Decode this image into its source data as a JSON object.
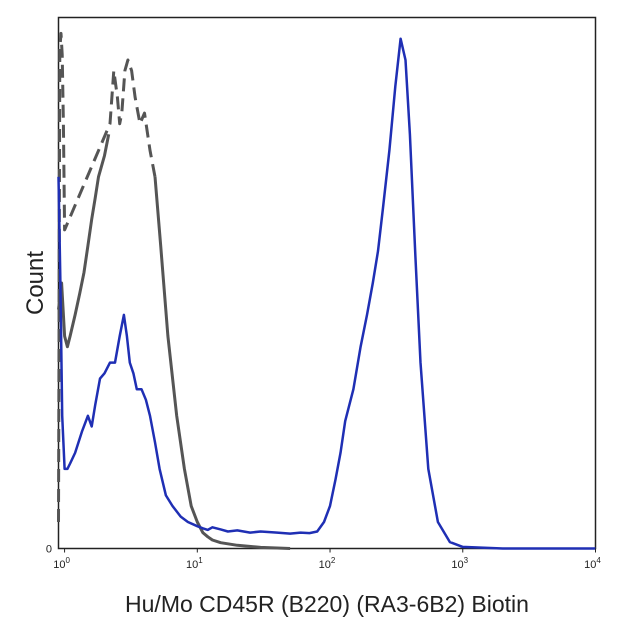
{
  "chart_data": {
    "type": "line",
    "title": "",
    "xlabel": "Hu/Mo CD45R (B220) (RA3-6B2) Biotin",
    "ylabel": "Count",
    "x_scale": "log",
    "xlim": [
      0.9,
      10000
    ],
    "ylim": [
      0,
      100
    ],
    "grid": false,
    "legend": "none",
    "x_ticks": [
      {
        "value": 1,
        "base": "10",
        "exp": "0"
      },
      {
        "value": 10,
        "base": "10",
        "exp": "1"
      },
      {
        "value": 100,
        "base": "10",
        "exp": "2"
      },
      {
        "value": 1000,
        "base": "10",
        "exp": "3"
      },
      {
        "value": 10000,
        "base": "10",
        "exp": "4"
      }
    ],
    "y_ticks": [
      {
        "value": 0,
        "label": "0"
      }
    ],
    "series": [
      {
        "color": "#555555",
        "dash": "none",
        "x": [
          0.9,
          0.95,
          1.0,
          1.05,
          1.1,
          1.2,
          1.3,
          1.4,
          1.5,
          1.6,
          1.7,
          1.8,
          2.0,
          2.15
        ],
        "y": [
          45,
          50,
          40,
          38,
          40,
          44,
          48,
          52,
          57,
          62,
          66,
          70,
          74,
          78
        ]
      },
      {
        "color": "#555555",
        "dash": "dashed",
        "x": [
          0.9,
          0.92,
          0.94,
          0.96,
          0.98,
          1.0,
          2.2,
          2.35,
          2.5,
          2.6,
          2.7,
          2.85,
          3.0,
          3.2,
          3.4,
          3.7,
          4.0,
          4.4,
          4.8
        ],
        "y": [
          5,
          94,
          97,
          93,
          80,
          60,
          80,
          90,
          85,
          80,
          82,
          90,
          92,
          90,
          85,
          80,
          82,
          75,
          70
        ]
      },
      {
        "color": "#555555",
        "dash": "none",
        "x": [
          4.8,
          5.3,
          6.0,
          7.0,
          8.0,
          9.0,
          10,
          11,
          12,
          13,
          15,
          20,
          30,
          50
        ],
        "y": [
          70,
          57,
          40,
          25,
          15,
          8,
          5,
          3,
          2.2,
          1.6,
          1.1,
          0.6,
          0.2,
          0
        ]
      },
      {
        "color": "#1f2fb4",
        "dash": "none",
        "x": [
          0.9,
          0.93,
          0.96,
          1.0,
          1.05,
          1.1,
          1.2,
          1.35,
          1.5,
          1.6,
          1.7,
          1.85,
          2.0,
          2.2,
          2.4,
          2.6,
          2.8,
          2.95,
          3.1,
          3.3,
          3.5,
          3.8,
          4.1,
          4.4,
          4.8,
          5.2,
          5.8,
          6.5,
          7.5,
          8.5,
          10,
          11,
          12,
          13,
          15,
          17,
          20,
          25,
          30,
          40,
          50,
          60,
          70,
          80,
          90,
          100,
          110,
          120,
          130,
          150,
          170,
          190,
          210,
          230,
          250,
          280,
          310,
          340,
          370,
          400,
          440,
          480,
          550,
          650,
          800,
          1000,
          2000,
          10000
        ],
        "y": [
          70,
          50,
          25,
          15,
          15,
          16,
          18,
          22,
          25,
          23,
          27,
          32,
          33,
          35,
          35,
          40,
          44,
          40,
          35,
          33,
          30,
          30,
          28,
          25,
          20,
          15,
          10,
          8,
          6,
          5,
          4.2,
          3.8,
          3.5,
          4,
          3.6,
          3.2,
          3.4,
          3.0,
          3.2,
          3.0,
          2.8,
          3.0,
          2.9,
          3.2,
          5,
          8,
          13,
          18,
          24,
          30,
          38,
          44,
          50,
          56,
          64,
          75,
          87,
          96,
          92,
          78,
          55,
          35,
          15,
          5,
          1.2,
          0.3,
          0,
          0
        ]
      }
    ]
  }
}
